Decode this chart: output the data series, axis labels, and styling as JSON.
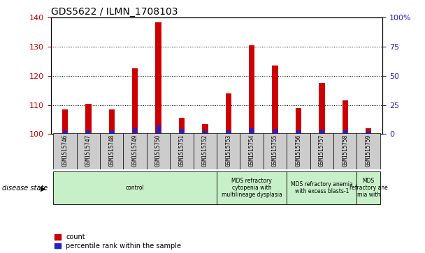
{
  "title": "GDS5622 / ILMN_1708103",
  "samples": [
    "GSM1515746",
    "GSM1515747",
    "GSM1515748",
    "GSM1515749",
    "GSM1515750",
    "GSM1515751",
    "GSM1515752",
    "GSM1515753",
    "GSM1515754",
    "GSM1515755",
    "GSM1515756",
    "GSM1515757",
    "GSM1515758",
    "GSM1515759"
  ],
  "count_values": [
    108.5,
    110.5,
    108.5,
    122.5,
    138.5,
    105.5,
    103.5,
    114.0,
    130.5,
    123.5,
    109.0,
    117.5,
    111.5,
    102.0
  ],
  "percentile_values": [
    3.0,
    3.0,
    3.5,
    5.5,
    7.5,
    4.5,
    3.0,
    3.5,
    5.0,
    4.5,
    3.5,
    4.0,
    4.0,
    2.5
  ],
  "ymin": 100,
  "ymax": 140,
  "yticks_left": [
    100,
    110,
    120,
    130,
    140
  ],
  "yticks_right": [
    0,
    25,
    50,
    75,
    100
  ],
  "bar_color_red": "#cc0000",
  "bar_color_blue": "#2222cc",
  "red_bar_width": 0.25,
  "blue_bar_width": 0.18,
  "bg_color": "#ffffff",
  "tick_bg_color": "#cccccc",
  "grid_color": "#000000",
  "disease_groups": [
    {
      "label": "control",
      "start": 0,
      "end": 7
    },
    {
      "label": "MDS refractory\ncytopenia with\nmultilineage dysplasia",
      "start": 7,
      "end": 10
    },
    {
      "label": "MDS refractory anemia\nwith excess blasts-1",
      "start": 10,
      "end": 13
    },
    {
      "label": "MDS\nrefractory ane\nmia with",
      "start": 13,
      "end": 14
    }
  ],
  "disease_color": "#c8f0c8",
  "disease_state_label": "disease state",
  "legend_count_label": "count",
  "legend_percentile_label": "percentile rank within the sample",
  "title_fontsize": 10,
  "axis_fontsize": 8,
  "tick_fontsize": 7
}
